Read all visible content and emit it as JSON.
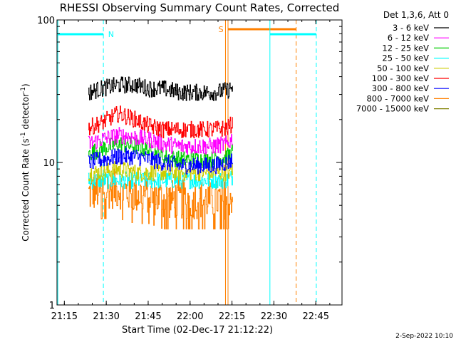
{
  "chart_data": {
    "type": "line",
    "title": "RHESSI Observing Summary Count Rates, Corrected",
    "xlabel": "Start Time (02-Dec-17 21:12:22)",
    "ylabel_main": "Corrected Count Rate (s",
    "ylabel_exp1": "-1",
    "ylabel_mid": " detector",
    "ylabel_exp2": "-1",
    "ylabel_end": ")",
    "x_axis": {
      "unit": "minutes after 21:12:22",
      "range": [
        0,
        102
      ],
      "ticks": [
        {
          "value": 2.63,
          "label": "21:15"
        },
        {
          "value": 17.63,
          "label": "21:30"
        },
        {
          "value": 32.63,
          "label": "21:45"
        },
        {
          "value": 47.63,
          "label": "22:00"
        },
        {
          "value": 62.63,
          "label": "22:15"
        },
        {
          "value": 77.63,
          "label": "22:30"
        },
        {
          "value": 92.63,
          "label": "22:45"
        }
      ]
    },
    "y_axis": {
      "scale": "log",
      "range": [
        1,
        100
      ],
      "ticks": [
        {
          "value": 1,
          "label": "1"
        },
        {
          "value": 10,
          "label": "10"
        },
        {
          "value": 100,
          "label": "100"
        }
      ]
    },
    "legend": {
      "placement": "top-right",
      "header": "Det 1,3,6, Att 0"
    },
    "series": [
      {
        "name": "3 - 6 keV",
        "color": "#000000",
        "values": [
          [
            11.2,
            31
          ],
          [
            16,
            33
          ],
          [
            22,
            35
          ],
          [
            28,
            35
          ],
          [
            33,
            33
          ],
          [
            38,
            33
          ],
          [
            44,
            31
          ],
          [
            50,
            31
          ],
          [
            56,
            31
          ],
          [
            61,
            32
          ],
          [
            63,
            34
          ]
        ]
      },
      {
        "name": "6 - 12 keV",
        "color": "#ff00ff",
        "values": [
          [
            11.2,
            13.5
          ],
          [
            16,
            14.5
          ],
          [
            22,
            15.5
          ],
          [
            28,
            15
          ],
          [
            33,
            14.5
          ],
          [
            38,
            13.5
          ],
          [
            44,
            13
          ],
          [
            50,
            13
          ],
          [
            56,
            13
          ],
          [
            61,
            13.5
          ],
          [
            63,
            15
          ]
        ]
      },
      {
        "name": "12 - 25 keV",
        "color": "#00cc00",
        "values": [
          [
            11.2,
            11.5
          ],
          [
            16,
            12.5
          ],
          [
            22,
            13.5
          ],
          [
            28,
            13
          ],
          [
            33,
            12
          ],
          [
            38,
            11
          ],
          [
            44,
            10.5
          ],
          [
            50,
            10.5
          ],
          [
            56,
            10.5
          ],
          [
            61,
            11
          ],
          [
            63,
            12
          ]
        ]
      },
      {
        "name": "25 - 50 keV",
        "color": "#00ffff",
        "values": [
          [
            11.2,
            7.5
          ],
          [
            16,
            7.5
          ],
          [
            22,
            7.5
          ],
          [
            28,
            7.5
          ],
          [
            33,
            7.5
          ],
          [
            38,
            7.5
          ],
          [
            44,
            7.5
          ],
          [
            50,
            7.5
          ],
          [
            56,
            7.5
          ],
          [
            61,
            7.5
          ],
          [
            63,
            8
          ]
        ]
      },
      {
        "name": "50 - 100 keV",
        "color": "#cccc00",
        "values": [
          [
            11.2,
            8.5
          ],
          [
            16,
            8.5
          ],
          [
            22,
            9
          ],
          [
            28,
            8.5
          ],
          [
            33,
            8.5
          ],
          [
            38,
            8.5
          ],
          [
            44,
            8.5
          ],
          [
            50,
            8.5
          ],
          [
            56,
            8.5
          ],
          [
            61,
            8.5
          ],
          [
            63,
            9
          ]
        ]
      },
      {
        "name": "100 - 300 keV",
        "color": "#ff0000",
        "values": [
          [
            11.2,
            17.5
          ],
          [
            16,
            19
          ],
          [
            22,
            22
          ],
          [
            28,
            20
          ],
          [
            33,
            18
          ],
          [
            38,
            17
          ],
          [
            44,
            17
          ],
          [
            50,
            17
          ],
          [
            56,
            17
          ],
          [
            61,
            17.5
          ],
          [
            63,
            19
          ]
        ]
      },
      {
        "name": "300 - 800 keV",
        "color": "#0000ff",
        "values": [
          [
            11.2,
            10
          ],
          [
            16,
            10.5
          ],
          [
            22,
            11
          ],
          [
            28,
            11
          ],
          [
            33,
            10.5
          ],
          [
            38,
            10
          ],
          [
            44,
            9.5
          ],
          [
            50,
            9.5
          ],
          [
            56,
            9.5
          ],
          [
            61,
            10
          ],
          [
            63,
            10.5
          ]
        ]
      },
      {
        "name": "800 - 7000 keV",
        "color": "#ff8000",
        "values": [
          [
            11.2,
            6
          ],
          [
            16,
            6.5
          ],
          [
            22,
            6.5
          ],
          [
            28,
            6
          ],
          [
            33,
            6
          ],
          [
            38,
            5.5
          ],
          [
            44,
            5.5
          ],
          [
            50,
            5.5
          ],
          [
            56,
            5.5
          ],
          [
            61,
            5.5
          ],
          [
            63,
            6
          ]
        ]
      },
      {
        "name": "7000 - 15000 keV",
        "color": "#808000",
        "values": []
      }
    ],
    "annotations": {
      "night_label": "N",
      "saa_label": "S",
      "night_color": "#00ffff",
      "saa_color": "#ff8000"
    },
    "timestamp": "2-Sep-2022 10:10"
  }
}
